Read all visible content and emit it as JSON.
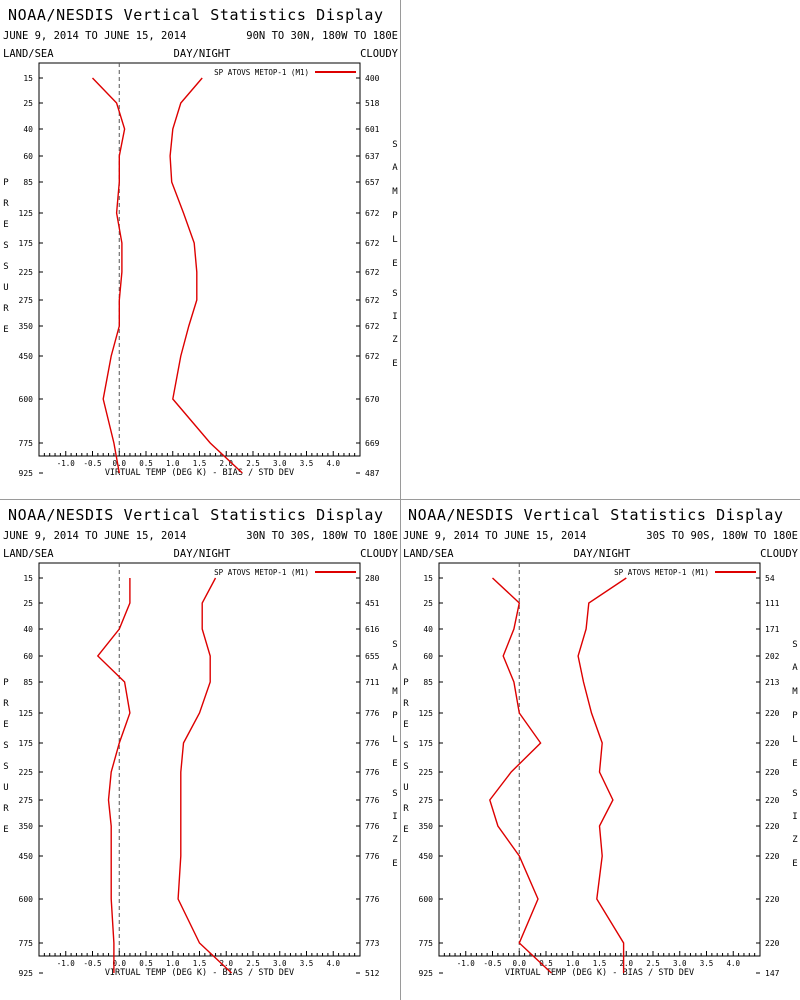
{
  "colors": {
    "series": "#dd0000",
    "axis": "#000000",
    "zero_line": "#555555",
    "separator": "#9a9a9a"
  },
  "common": {
    "title": "NOAA/NESDIS Vertical Statistics Display",
    "date_range": "JUNE 9, 2014 TO JUNE 15, 2014",
    "land_sea": "LAND/SEA",
    "day_night": "DAY/NIGHT",
    "cloudy": "CLOUDY",
    "legend": "SP ATOVS METOP-1 (M1)",
    "xlabel": "VIRTUAL TEMP (DEG K) - BIAS / STD DEV",
    "ylabel": "PRESSURE",
    "right_label": "SAMPLE SIZE",
    "x_ticks": [
      "-1.0",
      "-0.5",
      "0.0",
      "0.5",
      "1.0",
      "1.5",
      "2.0",
      "2.5",
      "3.0",
      "3.5",
      "4.0"
    ],
    "pressure_levels": [
      "15",
      "25",
      "40",
      "60",
      "85",
      "125",
      "175",
      "225",
      "275",
      "350",
      "450",
      "600",
      "775",
      "925"
    ]
  },
  "chart_data": [
    {
      "type": "line",
      "region": "90N TO 30N, 180W TO 180E",
      "xlim": [
        -1.5,
        4.5
      ],
      "y": [
        15,
        25,
        40,
        60,
        85,
        125,
        175,
        225,
        275,
        350,
        450,
        600,
        775,
        925
      ],
      "sample_size": [
        "400",
        "518",
        "601",
        "637",
        "657",
        "672",
        "672",
        "672",
        "672",
        "672",
        "672",
        "670",
        "669",
        "487"
      ],
      "series": [
        {
          "values": [
            -0.5,
            -0.05,
            0.1,
            0.0,
            0.0,
            -0.05,
            0.05,
            0.05,
            0.0,
            0.0,
            -0.15,
            -0.3,
            -0.1,
            0.0
          ]
        },
        {
          "values": [
            1.55,
            1.15,
            1.0,
            0.95,
            0.98,
            1.2,
            1.4,
            1.45,
            1.45,
            1.3,
            1.15,
            1.0,
            1.7,
            2.3
          ]
        }
      ]
    },
    {
      "type": "line",
      "region": "30N TO 30S, 180W TO 180E",
      "xlim": [
        -1.5,
        4.5
      ],
      "y": [
        15,
        25,
        40,
        60,
        85,
        125,
        175,
        225,
        275,
        350,
        450,
        600,
        775,
        925
      ],
      "sample_size": [
        "280",
        "451",
        "616",
        "655",
        "711",
        "776",
        "776",
        "776",
        "776",
        "776",
        "776",
        "776",
        "773",
        "512"
      ],
      "series": [
        {
          "values": [
            0.2,
            0.2,
            0.0,
            -0.4,
            0.1,
            0.2,
            0.0,
            -0.15,
            -0.2,
            -0.15,
            -0.15,
            -0.15,
            -0.1,
            -0.1
          ]
        },
        {
          "values": [
            1.8,
            1.55,
            1.55,
            1.7,
            1.7,
            1.5,
            1.2,
            1.15,
            1.15,
            1.15,
            1.15,
            1.1,
            1.5,
            2.1
          ]
        }
      ]
    },
    {
      "type": "line",
      "region": "30S TO 90S, 180W TO 180E",
      "xlim": [
        -1.5,
        4.5
      ],
      "y": [
        15,
        25,
        40,
        60,
        85,
        125,
        175,
        225,
        275,
        350,
        450,
        600,
        775,
        925
      ],
      "sample_size": [
        "54",
        "111",
        "171",
        "202",
        "213",
        "220",
        "220",
        "220",
        "220",
        "220",
        "220",
        "220",
        "220",
        "147"
      ],
      "series": [
        {
          "values": [
            -0.5,
            0.0,
            -0.1,
            -0.3,
            -0.1,
            0.0,
            0.4,
            -0.15,
            -0.55,
            -0.4,
            0.0,
            0.35,
            0.0,
            0.6
          ]
        },
        {
          "values": [
            2.0,
            1.3,
            1.25,
            1.1,
            1.2,
            1.35,
            1.55,
            1.5,
            1.75,
            1.5,
            1.55,
            1.45,
            1.95,
            1.95
          ]
        }
      ]
    }
  ]
}
